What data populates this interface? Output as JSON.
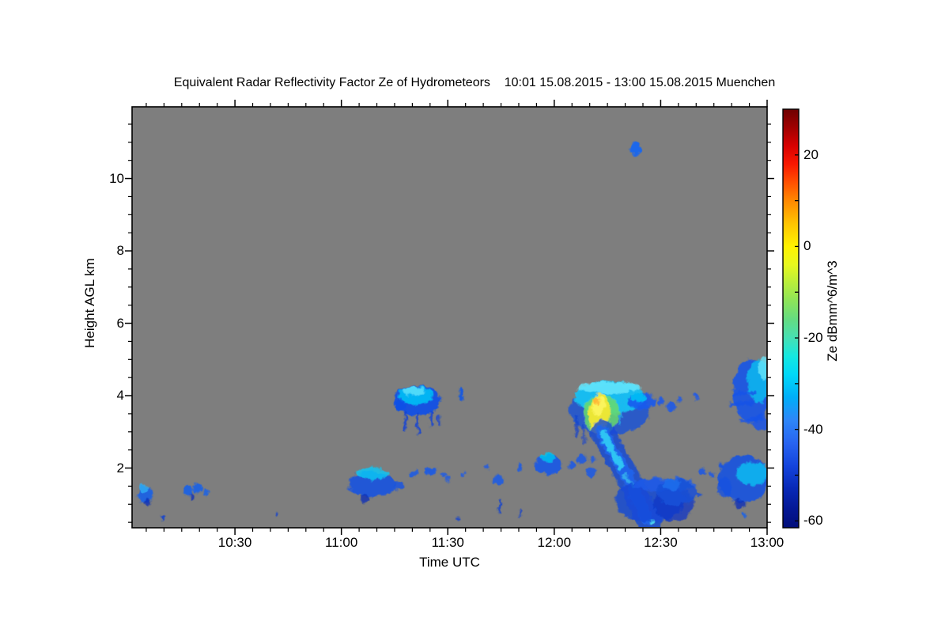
{
  "chart_data": {
    "type": "heatmap",
    "title": "Equivalent Radar Reflectivity Factor Ze of Hydrometeors    10:01 15.08.2015 - 13:00 15.08.2015 Muenchen",
    "xlabel": "Time UTC",
    "ylabel": "Height AGL km",
    "station": "Muenchen",
    "time_range": "10:01 15.08.2015 - 13:00 15.08.2015",
    "x_start_hour": 10.0167,
    "x_end_hour": 13.0,
    "y_km_min": 0.35,
    "y_km_max": 11.98,
    "plot_bg": "#7E7E7E",
    "grid": false,
    "x_major_ticks": [
      {
        "label": "10:30",
        "hour": 10.5
      },
      {
        "label": "11:00",
        "hour": 11.0
      },
      {
        "label": "11:30",
        "hour": 11.5
      },
      {
        "label": "12:00",
        "hour": 12.0
      },
      {
        "label": "12:30",
        "hour": 12.5
      },
      {
        "label": "13:00",
        "hour": 13.0
      }
    ],
    "x_minor_step_minutes": 5,
    "y_major_ticks": [
      {
        "label": "2",
        "km": 2
      },
      {
        "label": "4",
        "km": 4
      },
      {
        "label": "6",
        "km": 6
      },
      {
        "label": "8",
        "km": 8
      },
      {
        "label": "10",
        "km": 10
      }
    ],
    "y_minor_step_km": 0.5,
    "colorbar": {
      "label": "Ze dBmm^6/m^3",
      "max": 30,
      "min": -61.5,
      "tick_values": [
        20,
        10,
        0,
        -10,
        -20,
        -30,
        -40,
        -50,
        -60
      ],
      "labeled_ticks": [
        {
          "label": "20",
          "value": 20
        },
        {
          "label": "0",
          "value": 0
        },
        {
          "label": "-20",
          "value": -20
        },
        {
          "label": "-40",
          "value": -40
        },
        {
          "label": "-60",
          "value": -60
        }
      ],
      "gradient": [
        {
          "value": 30,
          "color": "#6E0000"
        },
        {
          "value": 26,
          "color": "#A00000"
        },
        {
          "value": 22,
          "color": "#D80000"
        },
        {
          "value": 18,
          "color": "#F81800"
        },
        {
          "value": 14,
          "color": "#FF5000"
        },
        {
          "value": 10,
          "color": "#FF8800"
        },
        {
          "value": 5,
          "color": "#FFC400"
        },
        {
          "value": 0,
          "color": "#FFF200"
        },
        {
          "value": -4,
          "color": "#E8F81E"
        },
        {
          "value": -8,
          "color": "#B8EE3C"
        },
        {
          "value": -12,
          "color": "#8CE45A"
        },
        {
          "value": -16,
          "color": "#64DC82"
        },
        {
          "value": -20,
          "color": "#46E0B4"
        },
        {
          "value": -24,
          "color": "#14E8E0"
        },
        {
          "value": -28,
          "color": "#00D8F8"
        },
        {
          "value": -33,
          "color": "#00AEF8"
        },
        {
          "value": -38,
          "color": "#2E86F8"
        },
        {
          "value": -43,
          "color": "#2864F0"
        },
        {
          "value": -48,
          "color": "#1444DC"
        },
        {
          "value": -53,
          "color": "#0828B6"
        },
        {
          "value": -58,
          "color": "#041690"
        },
        {
          "value": -61.5,
          "color": "#020E7A"
        }
      ]
    },
    "features": [
      {
        "shape": "b",
        "t": 12.383,
        "km": 10.82,
        "dt": 0.048,
        "dkm": 0.39,
        "color": "#1565F0",
        "op": 0.95
      },
      {
        "shape": "b",
        "t": 11.355,
        "km": 3.87,
        "dt": 0.223,
        "dkm": 0.83,
        "color": "#0F4FE8",
        "op": 0.92
      },
      {
        "shape": "b",
        "t": 11.347,
        "km": 4.0,
        "dt": 0.16,
        "dkm": 0.52,
        "color": "#00BFF5",
        "op": 0.9
      },
      {
        "shape": "b",
        "t": 11.34,
        "km": 4.13,
        "dt": 0.1,
        "dkm": 0.24,
        "color": "#63E3FA",
        "op": 0.8
      },
      {
        "shape": "l",
        "pts": [
          [
            11.3,
            3.55
          ],
          [
            11.3,
            3.1
          ]
        ],
        "sw": 3,
        "color": "#0A3FD8",
        "op": 0.85
      },
      {
        "shape": "l",
        "pts": [
          [
            11.36,
            3.5
          ],
          [
            11.36,
            2.95
          ]
        ],
        "sw": 3,
        "color": "#0A3FD8",
        "op": 0.85
      },
      {
        "shape": "l",
        "pts": [
          [
            11.42,
            3.55
          ],
          [
            11.42,
            3.15
          ]
        ],
        "sw": 3,
        "color": "#0A3FD8",
        "op": 0.85
      },
      {
        "shape": "l",
        "pts": [
          [
            11.46,
            3.45
          ],
          [
            11.46,
            3.2
          ]
        ],
        "sw": 2.5,
        "color": "#0A3FD8",
        "op": 0.8
      },
      {
        "shape": "b",
        "t": 11.28,
        "km": 3.75,
        "dt": 0.05,
        "dkm": 0.33,
        "color": "#0F4FE8",
        "op": 0.85
      },
      {
        "shape": "b",
        "t": 11.562,
        "km": 4.05,
        "dt": 0.02,
        "dkm": 0.37,
        "color": "#1055E8",
        "op": 0.9
      },
      {
        "shape": "b",
        "t": 12.26,
        "km": 3.6,
        "dt": 0.38,
        "dkm": 1.35,
        "color": "#1450E0",
        "op": 0.75
      },
      {
        "shape": "b",
        "t": 12.26,
        "km": 3.95,
        "dt": 0.33,
        "dkm": 0.92,
        "color": "#15C2F2",
        "op": 0.95
      },
      {
        "shape": "b",
        "t": 12.255,
        "km": 4.22,
        "dt": 0.3,
        "dkm": 0.32,
        "color": "#66E6FC",
        "op": 0.85
      },
      {
        "shape": "b",
        "t": 12.22,
        "km": 3.5,
        "dt": 0.17,
        "dkm": 1.05,
        "color": "#6ADC6A",
        "op": 0.85
      },
      {
        "shape": "b",
        "t": 12.212,
        "km": 3.5,
        "dt": 0.1,
        "dkm": 1.1,
        "rot": 6,
        "color": "#F2E832",
        "op": 0.95
      },
      {
        "shape": "b",
        "t": 12.208,
        "km": 3.7,
        "dt": 0.06,
        "dkm": 0.55,
        "rot": 6,
        "color": "#FCF560",
        "op": 0.9
      },
      {
        "shape": "b",
        "t": 12.198,
        "km": 3.85,
        "dt": 0.03,
        "dkm": 0.22,
        "color": "#FFAE2E",
        "op": 0.85
      },
      {
        "shape": "b",
        "t": 12.41,
        "km": 3.85,
        "dt": 0.13,
        "dkm": 0.46,
        "color": "#1A5AEE",
        "op": 0.9
      },
      {
        "shape": "b",
        "t": 12.395,
        "km": 3.95,
        "dt": 0.07,
        "dkm": 0.26,
        "color": "#00C5F5",
        "op": 0.85
      },
      {
        "shape": "l",
        "pts": [
          [
            12.31,
            4.05
          ],
          [
            12.31,
            3.2
          ]
        ],
        "sw": 2,
        "color": "#20B8F0",
        "op": 0.8
      },
      {
        "shape": "l",
        "pts": [
          [
            12.325,
            4.0
          ],
          [
            12.325,
            3.55
          ]
        ],
        "sw": 2,
        "color": "#20B8F0",
        "op": 0.8
      },
      {
        "shape": "l",
        "pts": [
          [
            12.227,
            3.0
          ],
          [
            12.276,
            2.43
          ],
          [
            12.324,
            1.99
          ],
          [
            12.368,
            1.49
          ],
          [
            12.406,
            0.98
          ],
          [
            12.435,
            0.6
          ],
          [
            12.45,
            0.48
          ]
        ],
        "sw": 30,
        "color": "#1348D8",
        "op": 0.8
      },
      {
        "shape": "l",
        "pts": [
          [
            12.227,
            3.0
          ],
          [
            12.276,
            2.43
          ],
          [
            12.324,
            1.99
          ],
          [
            12.368,
            1.49
          ],
          [
            12.406,
            0.98
          ],
          [
            12.435,
            0.6
          ]
        ],
        "sw": 16,
        "color": "#1E66F0",
        "op": 0.85
      },
      {
        "shape": "l",
        "pts": [
          [
            12.227,
            3.0
          ],
          [
            12.27,
            2.5
          ],
          [
            12.31,
            2.05
          ]
        ],
        "sw": 8,
        "color": "#30CFF5",
        "op": 0.9
      },
      {
        "shape": "l",
        "pts": [
          [
            12.33,
            1.8
          ],
          [
            12.37,
            1.5
          ]
        ],
        "sw": 5,
        "color": "#40D8F0",
        "op": 0.6
      },
      {
        "shape": "b",
        "t": 12.45,
        "km": 1.1,
        "dt": 0.33,
        "dkm": 1.2,
        "color": "#1348D8",
        "op": 0.8
      },
      {
        "shape": "b",
        "t": 12.56,
        "km": 1.0,
        "dt": 0.19,
        "dkm": 0.95,
        "color": "#0C35C8",
        "op": 0.75
      },
      {
        "shape": "b",
        "t": 12.52,
        "km": 1.55,
        "dt": 0.3,
        "dkm": 0.38,
        "color": "#1E5CE8",
        "op": 0.8
      },
      {
        "shape": "b",
        "t": 12.46,
        "km": 0.5,
        "dt": 0.02,
        "dkm": 0.1,
        "color": "#50E0F0",
        "op": 0.9
      },
      {
        "shape": "l",
        "pts": [
          [
            12.11,
            3.45
          ],
          [
            12.1,
            2.85
          ]
        ],
        "sw": 4,
        "color": "#1040D0",
        "op": 0.7
      },
      {
        "shape": "l",
        "pts": [
          [
            12.13,
            3.2
          ],
          [
            12.145,
            2.7
          ]
        ],
        "sw": 3,
        "color": "#1040D0",
        "op": 0.6
      },
      {
        "shape": "b",
        "t": 12.5,
        "km": 3.85,
        "dt": 0.03,
        "dkm": 0.22,
        "color": "#1E5AE8",
        "op": 0.9
      },
      {
        "shape": "b",
        "t": 12.55,
        "km": 3.7,
        "dt": 0.04,
        "dkm": 0.26,
        "color": "#1E5AE8",
        "op": 0.9
      },
      {
        "shape": "b",
        "t": 12.59,
        "km": 3.9,
        "dt": 0.022,
        "dkm": 0.18,
        "color": "#1E5AE8",
        "op": 0.85
      },
      {
        "shape": "b",
        "t": 12.665,
        "km": 4.0,
        "dt": 0.022,
        "dkm": 0.22,
        "color": "#1E5AE8",
        "op": 0.9
      },
      {
        "shape": "b",
        "t": 12.93,
        "km": 4.15,
        "dt": 0.18,
        "dkm": 1.75,
        "color": "#1554E8",
        "op": 0.9
      },
      {
        "shape": "b",
        "t": 12.96,
        "km": 4.4,
        "dt": 0.1,
        "dkm": 1.2,
        "color": "#10C0F0",
        "op": 0.8
      },
      {
        "shape": "b",
        "t": 12.985,
        "km": 4.75,
        "dt": 0.05,
        "dkm": 0.65,
        "color": "#66E6FA",
        "op": 0.8
      },
      {
        "shape": "l",
        "pts": [
          [
            12.83,
            3.75
          ],
          [
            12.93,
            3.8
          ]
        ],
        "sw": 6,
        "color": "#1554E8",
        "op": 0.85
      },
      {
        "shape": "l",
        "pts": [
          [
            12.85,
            4.05
          ],
          [
            12.94,
            4.1
          ]
        ],
        "sw": 5,
        "color": "#1554E8",
        "op": 0.8
      },
      {
        "shape": "l",
        "pts": [
          [
            12.88,
            3.3
          ],
          [
            12.97,
            3.35
          ]
        ],
        "sw": 5,
        "color": "#1554E8",
        "op": 0.8
      },
      {
        "shape": "b",
        "t": 12.97,
        "km": 3.25,
        "dt": 0.08,
        "dkm": 0.46,
        "color": "#1554E8",
        "op": 0.85
      },
      {
        "shape": "b",
        "t": 12.89,
        "km": 1.7,
        "dt": 0.24,
        "dkm": 1.3,
        "color": "#1553E0",
        "op": 0.9
      },
      {
        "shape": "b",
        "t": 12.93,
        "km": 1.85,
        "dt": 0.15,
        "dkm": 0.65,
        "color": "#10C2F2",
        "op": 0.8
      },
      {
        "shape": "b",
        "t": 12.8,
        "km": 1.45,
        "dt": 0.07,
        "dkm": 0.55,
        "color": "#1553E0",
        "op": 0.8
      },
      {
        "shape": "b",
        "t": 12.87,
        "km": 1.0,
        "dt": 0.05,
        "dkm": 0.28,
        "color": "#0A30B8",
        "op": 0.8
      },
      {
        "shape": "b",
        "t": 12.785,
        "km": 2.08,
        "dt": 0.02,
        "dkm": 0.14,
        "color": "#1553E0",
        "op": 0.9
      },
      {
        "shape": "b",
        "t": 12.575,
        "km": 1.33,
        "dt": 0.19,
        "dkm": 0.7,
        "color": "#1450D8",
        "op": 0.85
      },
      {
        "shape": "b",
        "t": 12.55,
        "km": 1.55,
        "dt": 0.08,
        "dkm": 0.33,
        "color": "#2070EE",
        "op": 0.8
      },
      {
        "shape": "b",
        "t": 12.68,
        "km": 1.27,
        "dt": 0.03,
        "dkm": 0.14,
        "color": "#1450D8",
        "op": 0.85
      },
      {
        "shape": "b",
        "t": 12.7,
        "km": 1.9,
        "dt": 0.035,
        "dkm": 0.19,
        "color": "#1856E8",
        "op": 0.85
      },
      {
        "shape": "b",
        "t": 12.74,
        "km": 1.81,
        "dt": 0.03,
        "dkm": 0.17,
        "color": "#1856E8",
        "op": 0.8
      },
      {
        "shape": "b",
        "t": 11.143,
        "km": 1.55,
        "dt": 0.22,
        "dkm": 0.7,
        "color": "#1553E0",
        "op": 0.9
      },
      {
        "shape": "b",
        "t": 11.15,
        "km": 1.85,
        "dt": 0.15,
        "dkm": 0.33,
        "color": "#10C5F5",
        "op": 0.85
      },
      {
        "shape": "b",
        "t": 11.27,
        "km": 1.5,
        "dt": 0.05,
        "dkm": 0.24,
        "color": "#1553E0",
        "op": 0.85
      },
      {
        "shape": "b",
        "t": 11.11,
        "km": 1.15,
        "dt": 0.04,
        "dkm": 0.24,
        "color": "#0A30B8",
        "op": 0.8
      },
      {
        "shape": "b",
        "t": 11.34,
        "km": 1.85,
        "dt": 0.04,
        "dkm": 0.19,
        "color": "#1A5AE8",
        "op": 0.85
      },
      {
        "shape": "b",
        "t": 11.42,
        "km": 1.92,
        "dt": 0.06,
        "dkm": 0.21,
        "color": "#1A5AE8",
        "op": 0.9
      },
      {
        "shape": "b",
        "t": 11.48,
        "km": 1.81,
        "dt": 0.03,
        "dkm": 0.16,
        "color": "#1A5AE8",
        "op": 0.8
      },
      {
        "shape": "b",
        "t": 11.5,
        "km": 1.7,
        "dt": 0.02,
        "dkm": 0.13,
        "color": "#1A5AE8",
        "op": 0.8
      },
      {
        "shape": "b",
        "t": 11.57,
        "km": 1.81,
        "dt": 0.022,
        "dkm": 0.14,
        "color": "#1A5AE8",
        "op": 0.8
      },
      {
        "shape": "b",
        "t": 11.74,
        "km": 1.66,
        "dt": 0.06,
        "dkm": 0.26,
        "color": "#1A5AE8",
        "op": 0.85
      },
      {
        "shape": "b",
        "t": 11.84,
        "km": 2.03,
        "dt": 0.03,
        "dkm": 0.18,
        "color": "#1A5AE8",
        "op": 0.85
      },
      {
        "shape": "b",
        "t": 11.975,
        "km": 2.1,
        "dt": 0.126,
        "dkm": 0.55,
        "color": "#1757E8",
        "op": 0.9
      },
      {
        "shape": "b",
        "t": 11.97,
        "km": 2.3,
        "dt": 0.067,
        "dkm": 0.26,
        "color": "#00C8F0",
        "op": 0.8
      },
      {
        "shape": "b",
        "t": 12.08,
        "km": 2.08,
        "dt": 0.037,
        "dkm": 0.21,
        "color": "#1757E8",
        "op": 0.85
      },
      {
        "shape": "b",
        "t": 12.13,
        "km": 2.25,
        "dt": 0.045,
        "dkm": 0.3,
        "color": "#1757E8",
        "op": 0.85
      },
      {
        "shape": "b",
        "t": 12.18,
        "km": 2.23,
        "dt": 0.03,
        "dkm": 0.18,
        "color": "#1757E8",
        "op": 0.8
      },
      {
        "shape": "b",
        "t": 12.175,
        "km": 1.88,
        "dt": 0.05,
        "dkm": 0.26,
        "color": "#1757E8",
        "op": 0.85
      },
      {
        "shape": "l",
        "pts": [
          [
            11.744,
            0.77
          ],
          [
            11.744,
            1.1
          ]
        ],
        "sw": 3,
        "color": "#1040D0",
        "op": 0.85
      },
      {
        "shape": "l",
        "pts": [
          [
            11.84,
            0.66
          ],
          [
            11.84,
            0.83
          ]
        ],
        "sw": 2.5,
        "color": "#1040D0",
        "op": 0.8
      },
      {
        "shape": "b",
        "t": 11.685,
        "km": 2.03,
        "dt": 0.018,
        "dkm": 0.13,
        "color": "#1757E8",
        "op": 0.8
      },
      {
        "shape": "b",
        "t": 11.551,
        "km": 0.61,
        "dt": 0.015,
        "dkm": 0.11,
        "color": "#1040D0",
        "op": 0.8
      },
      {
        "shape": "b",
        "t": 10.08,
        "km": 1.27,
        "dt": 0.07,
        "dkm": 0.46,
        "color": "#1860E8",
        "op": 0.9
      },
      {
        "shape": "b",
        "t": 10.072,
        "km": 1.44,
        "dt": 0.035,
        "dkm": 0.2,
        "color": "#30B0F5",
        "op": 0.8
      },
      {
        "shape": "b",
        "t": 10.09,
        "km": 1.05,
        "dt": 0.03,
        "dkm": 0.19,
        "color": "#0A30B8",
        "op": 0.8
      },
      {
        "shape": "b",
        "t": 10.28,
        "km": 1.38,
        "dt": 0.045,
        "dkm": 0.28,
        "color": "#1860E8",
        "op": 0.9
      },
      {
        "shape": "b",
        "t": 10.325,
        "km": 1.44,
        "dt": 0.045,
        "dkm": 0.3,
        "color": "#1860E8",
        "op": 0.9
      },
      {
        "shape": "b",
        "t": 10.362,
        "km": 1.33,
        "dt": 0.025,
        "dkm": 0.18,
        "color": "#1860E8",
        "op": 0.85
      },
      {
        "shape": "b",
        "t": 10.3,
        "km": 1.2,
        "dt": 0.02,
        "dkm": 0.22,
        "color": "#0A30B8",
        "op": 0.8
      },
      {
        "shape": "b",
        "t": 10.162,
        "km": 0.61,
        "dt": 0.015,
        "dkm": 0.13,
        "color": "#1040D0",
        "op": 0.85
      },
      {
        "shape": "b",
        "t": 10.697,
        "km": 0.72,
        "dt": 0.015,
        "dkm": 0.1,
        "color": "#1040D0",
        "op": 0.8
      },
      {
        "shape": "b",
        "t": 12.89,
        "km": 0.7,
        "dt": 0.018,
        "dkm": 0.11,
        "color": "#1560E8",
        "op": 0.85
      }
    ]
  }
}
